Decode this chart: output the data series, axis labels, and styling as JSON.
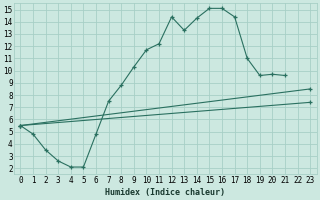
{
  "xlabel": "Humidex (Indice chaleur)",
  "bg_color": "#cce8e0",
  "grid_color": "#a8cfc6",
  "line_color": "#2a7060",
  "xlim": [
    -0.5,
    23.5
  ],
  "ylim": [
    1.5,
    15.5
  ],
  "xticks": [
    0,
    1,
    2,
    3,
    4,
    5,
    6,
    7,
    8,
    9,
    10,
    11,
    12,
    13,
    14,
    15,
    16,
    17,
    18,
    19,
    20,
    21,
    22,
    23
  ],
  "yticks": [
    2,
    3,
    4,
    5,
    6,
    7,
    8,
    9,
    10,
    11,
    12,
    13,
    14,
    15
  ],
  "line1_x": [
    0,
    1,
    2,
    3,
    4,
    5,
    6,
    7,
    8,
    9,
    10,
    11,
    12,
    13,
    14,
    15,
    16,
    17,
    18,
    19,
    20,
    21
  ],
  "line1_y": [
    5.5,
    4.8,
    3.5,
    2.6,
    2.1,
    2.1,
    4.8,
    7.5,
    8.8,
    10.3,
    11.7,
    12.2,
    14.4,
    13.3,
    14.3,
    15.1,
    15.1,
    14.4,
    11.0,
    9.6,
    9.7,
    9.6
  ],
  "line2_x": [
    0,
    23
  ],
  "line2_y": [
    5.5,
    8.5
  ],
  "line3_x": [
    0,
    23
  ],
  "line3_y": [
    5.5,
    7.4
  ],
  "tick_fontsize": 5.5,
  "xlabel_fontsize": 6.0
}
